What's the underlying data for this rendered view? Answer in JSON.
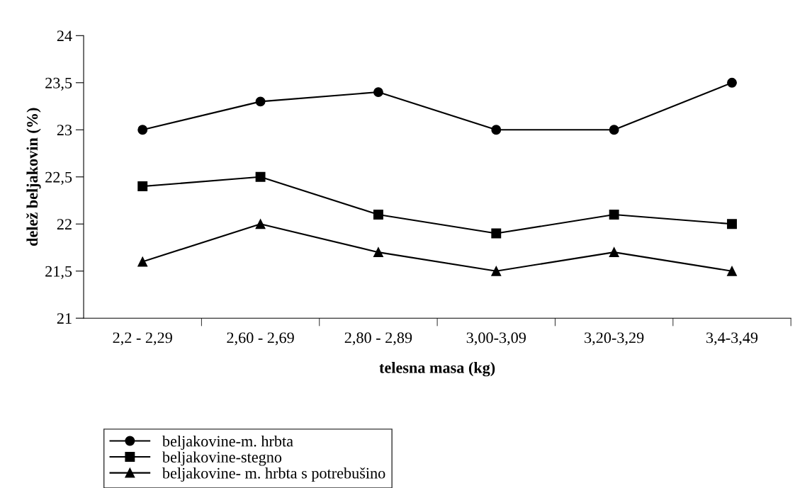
{
  "chart_data": {
    "type": "line",
    "xlabel": "telesna masa (kg)",
    "ylabel": "delež beljakovin (%)",
    "categories": [
      "2,2 - 2,29",
      "2,60 - 2,69",
      "2,80 - 2,89",
      "3,00-3,09",
      "3,20-3,29",
      "3,4-3,49"
    ],
    "series": [
      {
        "name": "beljakovine-m. hrbta",
        "color": "#000000",
        "marker": "circle",
        "values": [
          23.0,
          23.3,
          23.4,
          23.0,
          23.0,
          23.5
        ]
      },
      {
        "name": "beljakovine-stegno",
        "color": "#000000",
        "marker": "square",
        "values": [
          22.4,
          22.5,
          22.1,
          21.9,
          22.1,
          22.0
        ]
      },
      {
        "name": "beljakovine- m. hrbta s potrebušino",
        "color": "#000000",
        "marker": "triangle",
        "values": [
          21.6,
          22.0,
          21.7,
          21.5,
          21.7,
          21.5
        ]
      }
    ],
    "ylim": [
      21,
      24
    ],
    "yticks": [
      21,
      {
        "value": 21.5,
        "label": "21,5"
      },
      22,
      {
        "value": 22.5,
        "label": "22,5"
      },
      23,
      {
        "value": 23.5,
        "label": "23,5"
      },
      24
    ],
    "grid": false,
    "legend": "bottom",
    "line_style": "solid"
  }
}
